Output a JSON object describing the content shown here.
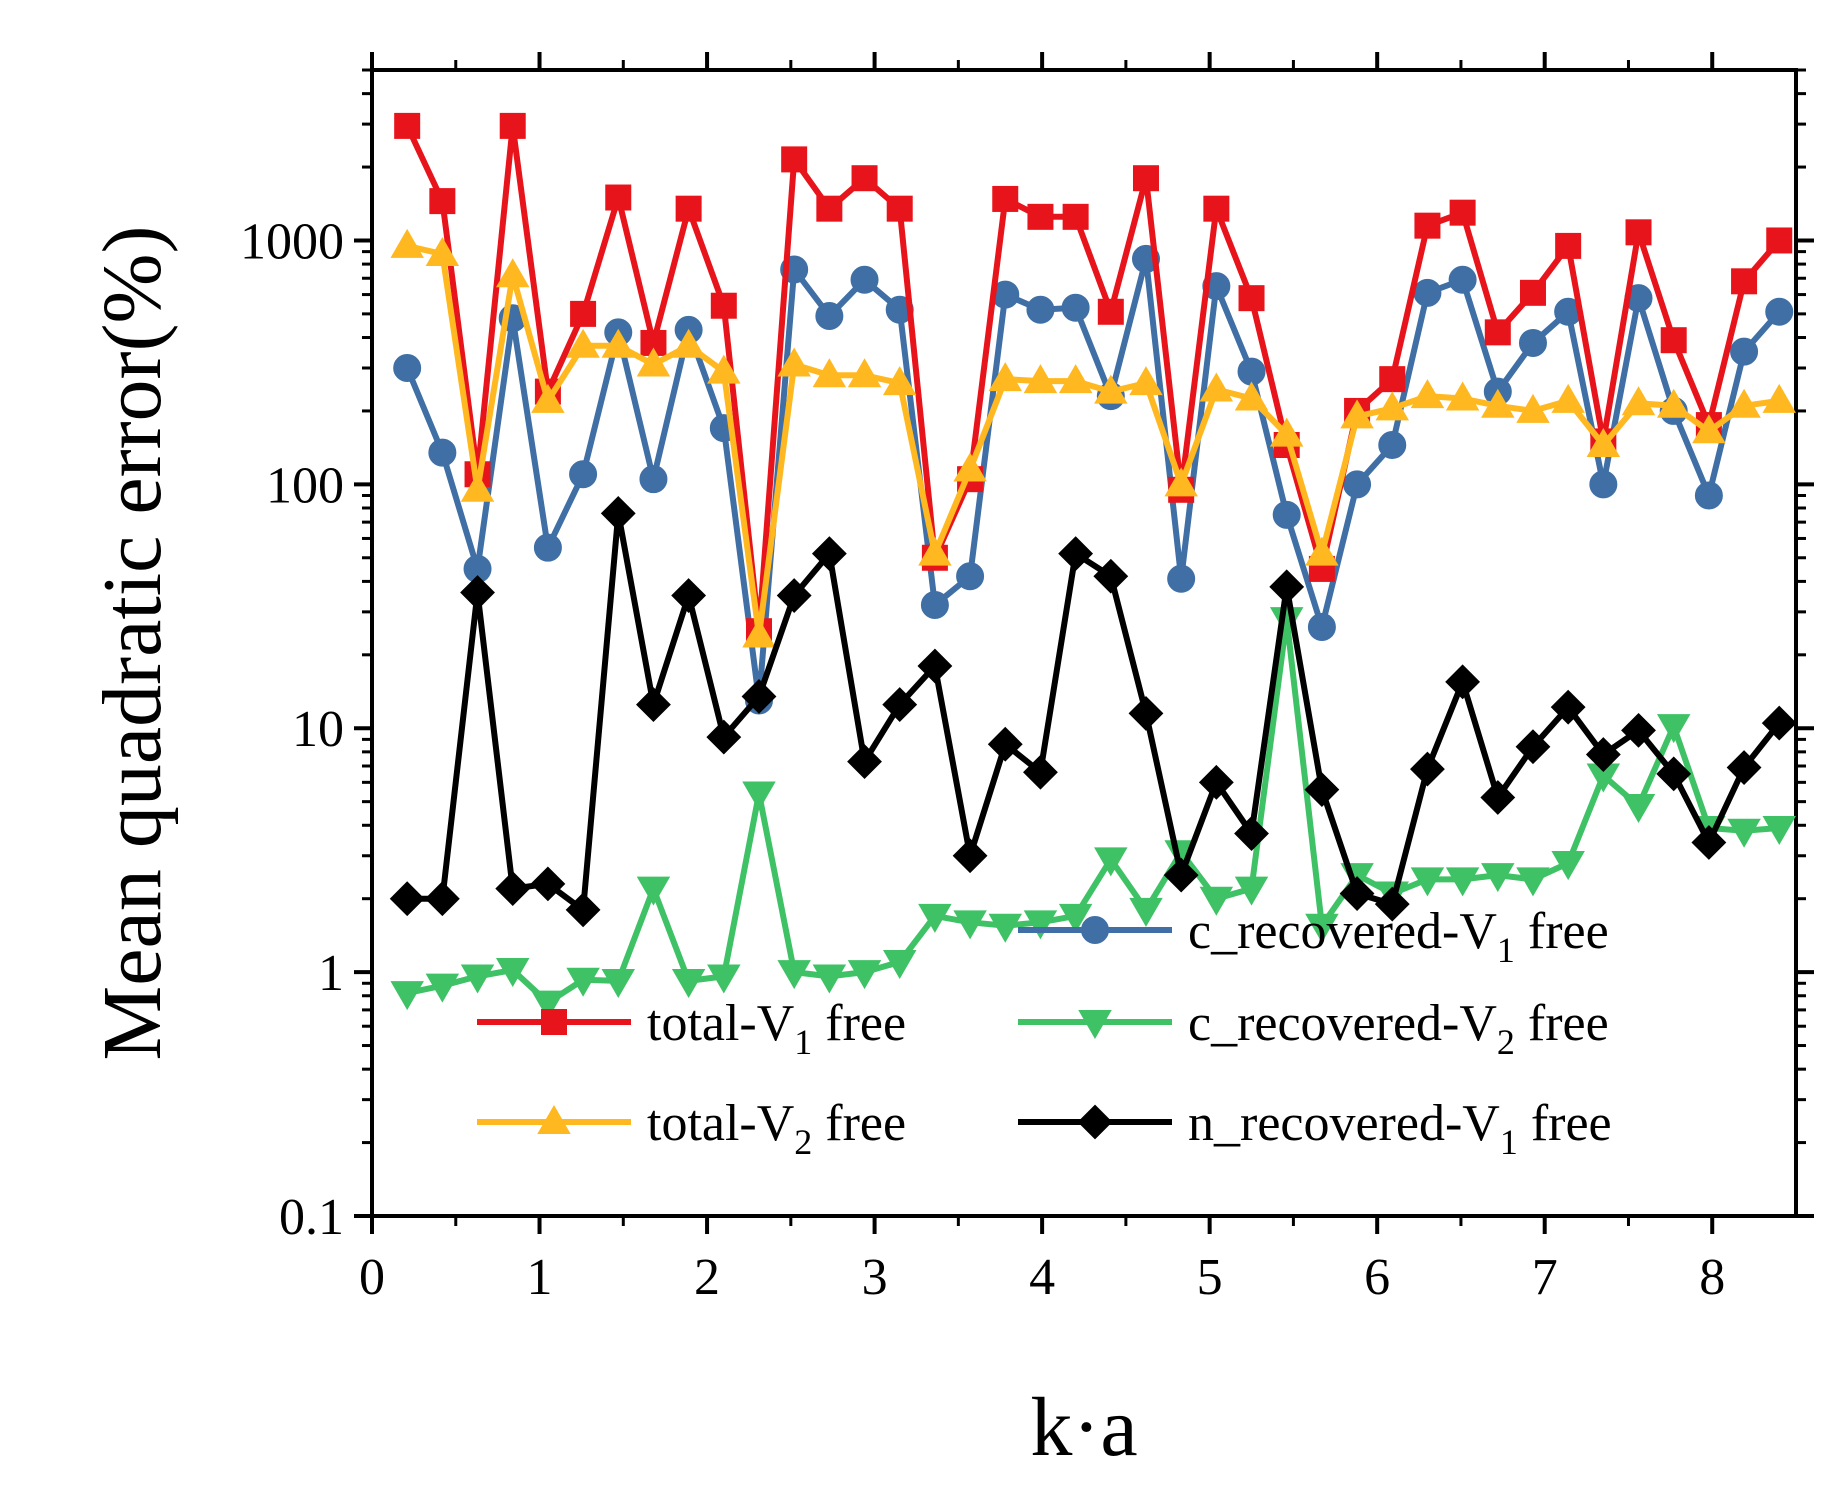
{
  "chart_data": {
    "type": "line",
    "title": "",
    "xlabel": "k·a",
    "ylabel": "Mean quadratic error(%)",
    "xlim": [
      0,
      8.5
    ],
    "ylim": [
      0.1,
      5000
    ],
    "yscale": "log",
    "grid": false,
    "legend": "bottom-right",
    "x_ticks": [
      "0",
      "1",
      "2",
      "3",
      "4",
      "5",
      "6",
      "7",
      "8"
    ],
    "y_ticks": [
      "0.1",
      "1",
      "10",
      "100",
      "1000"
    ],
    "x": [
      0.21,
      0.42,
      0.63,
      0.84,
      1.05,
      1.26,
      1.47,
      1.68,
      1.89,
      2.1,
      2.31,
      2.52,
      2.73,
      2.94,
      3.15,
      3.36,
      3.57,
      3.78,
      3.99,
      4.2,
      4.41,
      4.62,
      4.83,
      5.04,
      5.25,
      5.46,
      5.67,
      5.88,
      6.09,
      6.3,
      6.51,
      6.72,
      6.93,
      7.14,
      7.35,
      7.56,
      7.77,
      7.98,
      8.19,
      8.4
    ],
    "series": [
      {
        "name": "c_recovered-V",
        "subscript": "1",
        "suffix": " free",
        "color": "#3F6FA5",
        "marker": "circle",
        "values": [
          300,
          135,
          45,
          480,
          55,
          110,
          420,
          105,
          430,
          170,
          13,
          760,
          490,
          690,
          520,
          32,
          42,
          600,
          520,
          530,
          230,
          840,
          41,
          650,
          290,
          75,
          26,
          100,
          145,
          610,
          690,
          240,
          380,
          510,
          100,
          580,
          200,
          90,
          350,
          510
        ]
      },
      {
        "name": "total-V",
        "subscript": "1",
        "suffix": " free",
        "color": "#E8141B",
        "marker": "square",
        "values": [
          2950,
          1450,
          110,
          2950,
          240,
          500,
          1500,
          380,
          1350,
          540,
          25,
          2150,
          1350,
          1800,
          1350,
          50,
          105,
          1480,
          1250,
          1250,
          510,
          1800,
          95,
          1350,
          580,
          145,
          45,
          200,
          270,
          1150,
          1300,
          420,
          610,
          950,
          150,
          1080,
          390,
          175,
          680,
          1000
        ]
      },
      {
        "name": "c_recovered-V",
        "subscript": "2",
        "suffix": " free",
        "color": "#3FC266",
        "marker": "triangle-down",
        "values": [
          0.82,
          0.88,
          0.96,
          1.02,
          0.75,
          0.93,
          0.92,
          2.2,
          0.92,
          0.96,
          5.4,
          1.0,
          0.96,
          1.0,
          1.1,
          1.7,
          1.6,
          1.55,
          1.6,
          1.7,
          2.9,
          1.8,
          3.1,
          2.0,
          2.2,
          28,
          1.55,
          2.5,
          2.1,
          2.4,
          2.4,
          2.5,
          2.4,
          2.8,
          6.4,
          4.8,
          10.2,
          3.9,
          3.8,
          3.9
        ]
      },
      {
        "name": "total-V",
        "subscript": "2",
        "suffix": " free",
        "color": "#FFB81F",
        "marker": "triangle-up",
        "values": [
          950,
          880,
          95,
          720,
          220,
          370,
          370,
          310,
          370,
          290,
          24,
          310,
          280,
          280,
          260,
          52,
          115,
          270,
          265,
          265,
          240,
          260,
          100,
          245,
          225,
          160,
          52,
          190,
          205,
          230,
          225,
          210,
          200,
          220,
          145,
          215,
          210,
          165,
          210,
          220
        ]
      },
      {
        "name": "n_recovered-V",
        "subscript": "1",
        "suffix": " free",
        "color": "#000000",
        "marker": "diamond",
        "values": [
          2.0,
          2.0,
          36,
          2.2,
          2.3,
          1.8,
          76,
          12.5,
          35,
          9.2,
          13.5,
          35,
          52,
          7.3,
          12.5,
          18,
          3.0,
          8.6,
          6.6,
          52,
          42,
          11.5,
          2.5,
          6.0,
          3.7,
          38,
          5.6,
          2.1,
          1.9,
          6.8,
          15.5,
          5.2,
          8.4,
          12.2,
          7.8,
          9.8,
          6.5,
          3.4,
          6.9,
          10.5
        ]
      }
    ]
  }
}
